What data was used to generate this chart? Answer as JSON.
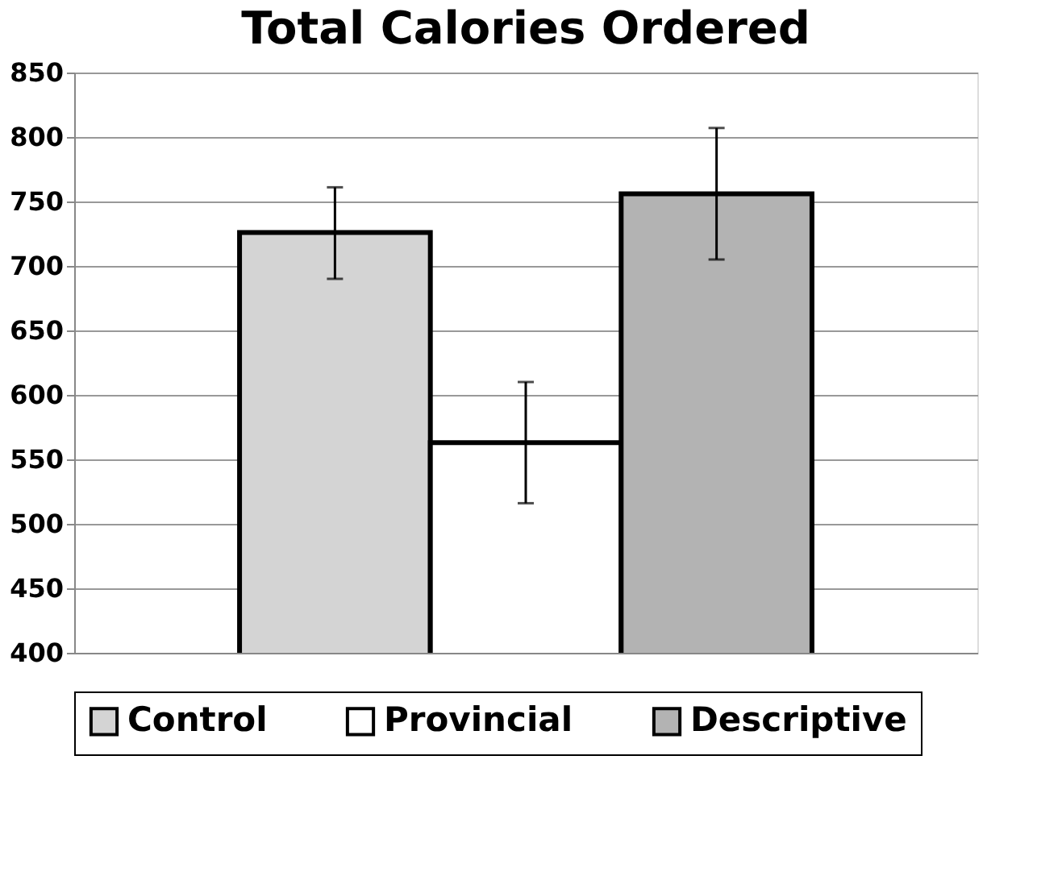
{
  "chart_data": {
    "type": "bar",
    "title": "Total Calories Ordered",
    "categories": [
      null
    ],
    "series": [
      {
        "name": "Control",
        "color": "#d4d4d4",
        "values": [
          726
        ],
        "errors": [
          [
            690,
            761
          ]
        ]
      },
      {
        "name": "Provincial",
        "color": "#ffffff",
        "values": [
          563
        ],
        "errors": [
          [
            516,
            610
          ]
        ]
      },
      {
        "name": "Descriptive",
        "color": "#b3b3b3",
        "values": [
          756
        ],
        "errors": [
          [
            705,
            807
          ]
        ]
      }
    ],
    "ylim": [
      400,
      850
    ],
    "yticks": [
      400,
      450,
      500,
      550,
      600,
      650,
      700,
      750,
      800,
      850
    ],
    "grid": "y",
    "legend": "bottom",
    "tick_labels": "y"
  }
}
